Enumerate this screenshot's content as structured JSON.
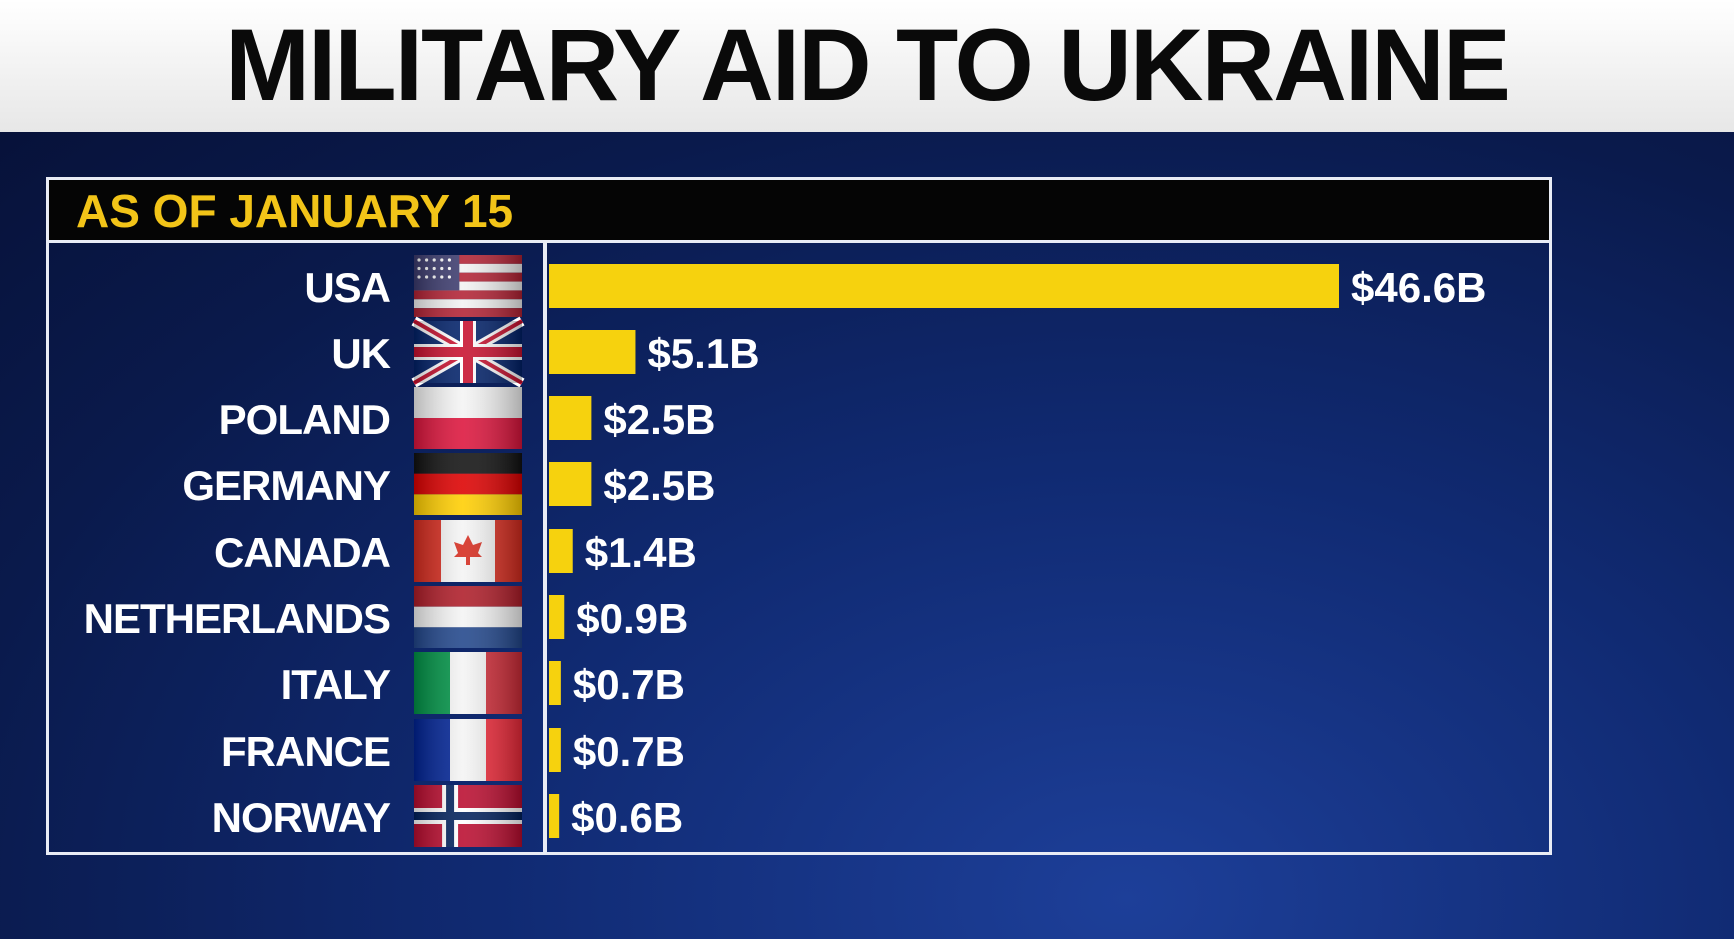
{
  "title": "MILITARY AID TO UKRAINE",
  "subtitle": "AS OF JANUARY 15",
  "colors": {
    "bar": "#f6d20e",
    "label": "#ffffff",
    "subtitle": "#f2c418",
    "background": "#0d2266"
  },
  "chart_data": {
    "type": "bar",
    "orientation": "horizontal",
    "title": "MILITARY AID TO UKRAINE",
    "subtitle": "AS OF JANUARY 15",
    "categories": [
      "USA",
      "UK",
      "POLAND",
      "GERMANY",
      "CANADA",
      "NETHERLANDS",
      "ITALY",
      "FRANCE",
      "NORWAY"
    ],
    "values": [
      46.6,
      5.1,
      2.5,
      2.5,
      1.4,
      0.9,
      0.7,
      0.7,
      0.6
    ],
    "value_labels": [
      "$46.6B",
      "$5.1B",
      "$2.5B",
      "$2.5B",
      "$1.4B",
      "$0.9B",
      "$0.7B",
      "$0.7B",
      "$0.6B"
    ],
    "units": "billion USD",
    "flags": [
      "usa-flag-icon",
      "uk-flag-icon",
      "poland-flag-icon",
      "germany-flag-icon",
      "canada-flag-icon",
      "netherlands-flag-icon",
      "italy-flag-icon",
      "france-flag-icon",
      "norway-flag-icon"
    ],
    "grid": false,
    "legend": "none"
  }
}
